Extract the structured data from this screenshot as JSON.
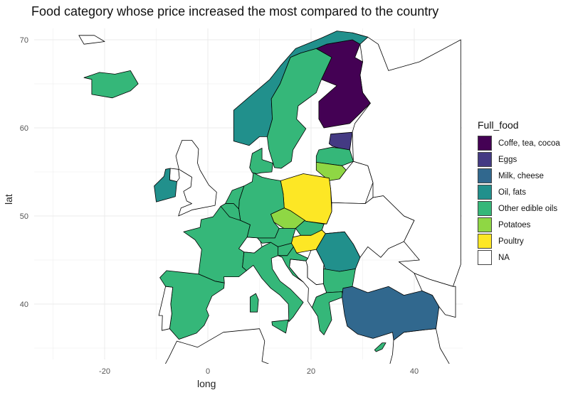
{
  "title": "Food category whose price increased the most compared to the country",
  "axes": {
    "xlabel": "long",
    "ylabel": "lat",
    "xticks": [
      -20,
      0,
      20,
      40
    ],
    "yticks": [
      40,
      50,
      60,
      70
    ]
  },
  "legend": {
    "title": "Full_food",
    "items": [
      {
        "label": "Coffe, tea, cocoa",
        "color": "#440154"
      },
      {
        "label": "Eggs",
        "color": "#443a83"
      },
      {
        "label": "Milk, cheese",
        "color": "#31688e"
      },
      {
        "label": "Oil, fats",
        "color": "#21908c"
      },
      {
        "label": "Other edible oils",
        "color": "#35b779"
      },
      {
        "label": "Potatoes",
        "color": "#8fd744"
      },
      {
        "label": "Poultry",
        "color": "#fde725"
      },
      {
        "label": "NA",
        "color": "#ffffff"
      }
    ]
  },
  "countries": [
    {
      "name": "Finland",
      "category": "Coffe, tea, cocoa"
    },
    {
      "name": "Estonia",
      "category": "Eggs"
    },
    {
      "name": "Turkey",
      "category": "Milk, cheese"
    },
    {
      "name": "Norway",
      "category": "Oil, fats"
    },
    {
      "name": "Ireland",
      "category": "Oil, fats"
    },
    {
      "name": "Romania",
      "category": "Oil, fats"
    },
    {
      "name": "Sweden",
      "category": "Other edible oils"
    },
    {
      "name": "Iceland",
      "category": "Other edible oils"
    },
    {
      "name": "Latvia",
      "category": "Other edible oils"
    },
    {
      "name": "Germany",
      "category": "Other edible oils"
    },
    {
      "name": "France",
      "category": "Other edible oils"
    },
    {
      "name": "Spain",
      "category": "Other edible oils"
    },
    {
      "name": "Italy",
      "category": "Other edible oils"
    },
    {
      "name": "Austria",
      "category": "Other edible oils"
    },
    {
      "name": "Bulgaria",
      "category": "Other edible oils"
    },
    {
      "name": "Greece",
      "category": "Other edible oils"
    },
    {
      "name": "Denmark",
      "category": "Other edible oils"
    },
    {
      "name": "Netherlands",
      "category": "Other edible oils"
    },
    {
      "name": "Belgium",
      "category": "Other edible oils"
    },
    {
      "name": "Slovenia",
      "category": "Other edible oils"
    },
    {
      "name": "Croatia",
      "category": "Other edible oils"
    },
    {
      "name": "Slovakia",
      "category": "Other edible oils"
    },
    {
      "name": "Cyprus",
      "category": "Other edible oils"
    },
    {
      "name": "Lithuania",
      "category": "Potatoes"
    },
    {
      "name": "Czechia",
      "category": "Potatoes"
    },
    {
      "name": "Poland",
      "category": "Poultry"
    },
    {
      "name": "Hungary",
      "category": "Poultry"
    },
    {
      "name": "United Kingdom",
      "category": "NA"
    },
    {
      "name": "Switzerland",
      "category": "NA"
    },
    {
      "name": "Serbia",
      "category": "NA"
    },
    {
      "name": "Belarus",
      "category": "NA"
    },
    {
      "name": "Ukraine",
      "category": "NA"
    },
    {
      "name": "Russia",
      "category": "NA"
    },
    {
      "name": "North Africa",
      "category": "NA"
    }
  ]
}
